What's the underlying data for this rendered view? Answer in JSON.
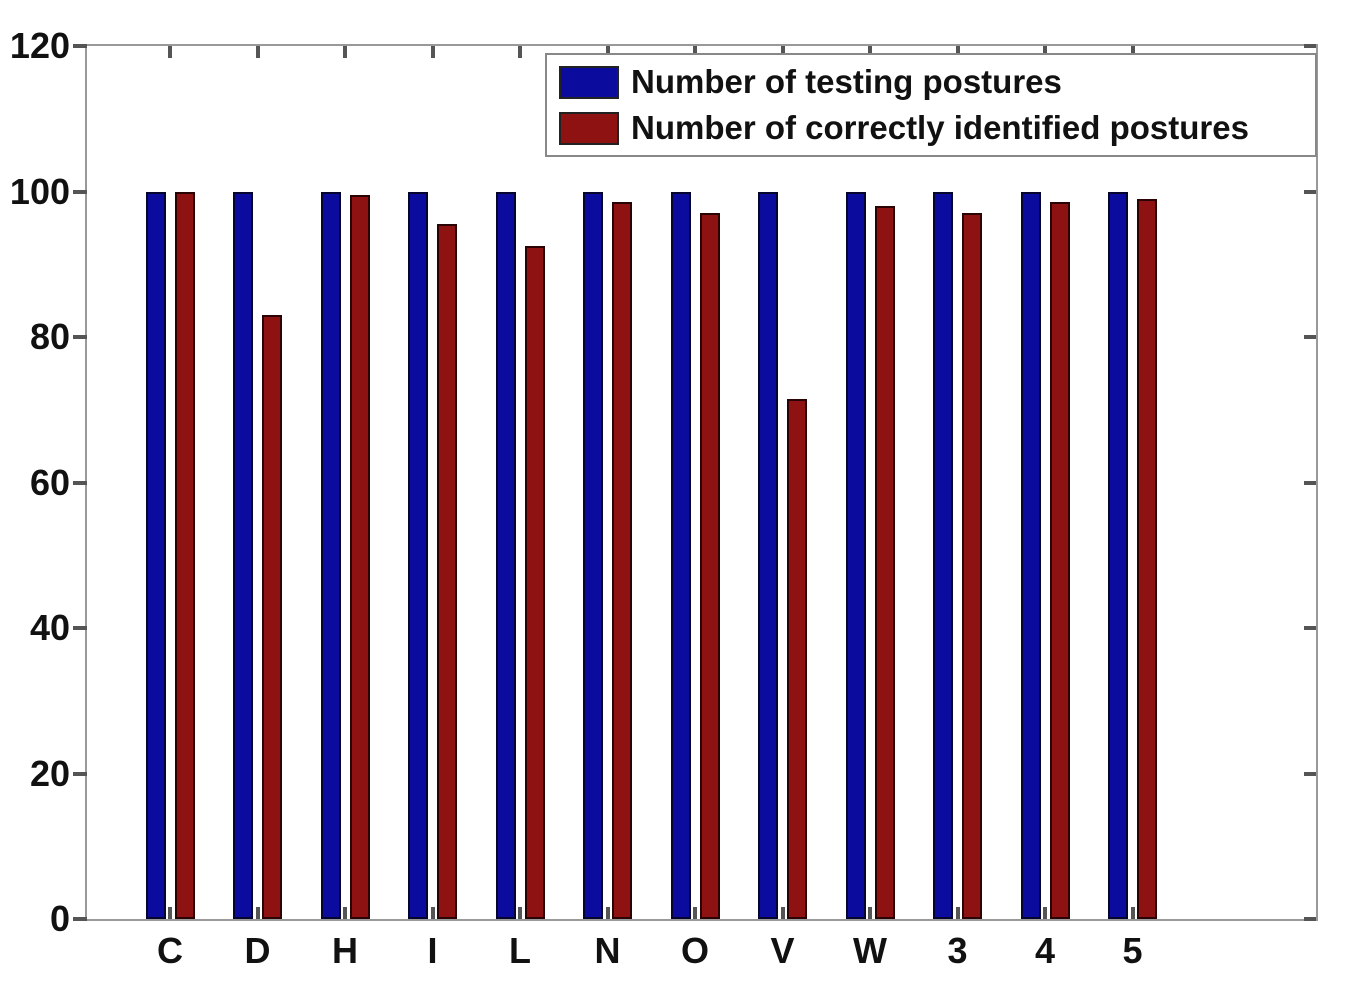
{
  "chart_data": {
    "type": "bar",
    "title": "",
    "xlabel": "",
    "ylabel": "",
    "categories": [
      "C",
      "D",
      "H",
      "I",
      "L",
      "N",
      "O",
      "V",
      "W",
      "3",
      "4",
      "5"
    ],
    "series": [
      {
        "name": "Number of testing postures",
        "color": "#0b0b9d",
        "edge_color": "#05052e",
        "values": [
          100,
          100,
          100,
          100,
          100,
          100,
          100,
          100,
          100,
          100,
          100,
          100
        ]
      },
      {
        "name": "Number of correctly identified postures",
        "color": "#8e1212",
        "edge_color": "#2a0404",
        "values": [
          100,
          83,
          99.5,
          95.5,
          92.5,
          98.5,
          97,
          71.5,
          98,
          97,
          98.5,
          99
        ]
      }
    ],
    "ylim": [
      0,
      120
    ],
    "yticks": [
      0,
      20,
      40,
      60,
      80,
      100,
      120
    ],
    "grid": false,
    "legend_position": "top-right",
    "axis_color": "#999999",
    "tick_color": "#555555",
    "text_color": "#111111"
  }
}
